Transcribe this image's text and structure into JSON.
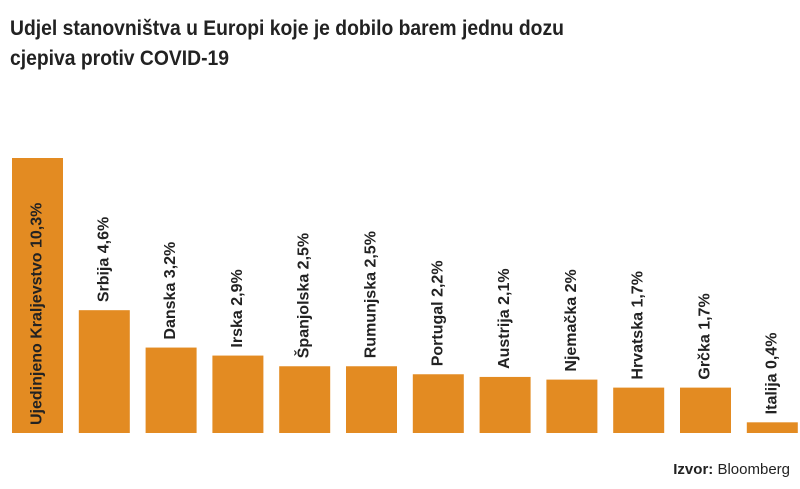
{
  "chart_data": {
    "type": "bar",
    "title": "Udjel stanovništva u Europi koje je dobilo barem jednu dozu cjepiva protiv COVID-19",
    "categories": [
      "Ujedinjeno Kraljevstvo",
      "Srbija",
      "Danska",
      "Irska",
      "Španjolska",
      "Rumunjska",
      "Portugal",
      "Austrija",
      "Njemačka",
      "Hrvatska",
      "Grčka",
      "Italija"
    ],
    "values": [
      10.3,
      4.6,
      3.2,
      2.9,
      2.5,
      2.5,
      2.2,
      2.1,
      2,
      1.7,
      1.7,
      0.4
    ],
    "value_labels": [
      "10,3%",
      "4,6%",
      "3,2%",
      "2,9%",
      "2,5%",
      "2,5%",
      "2,2%",
      "2,1%",
      "2%",
      "1,7%",
      "1,7%",
      "0,4%"
    ],
    "color": "#e38b22",
    "source_label": "Izvor:",
    "source": "Bloomberg"
  }
}
